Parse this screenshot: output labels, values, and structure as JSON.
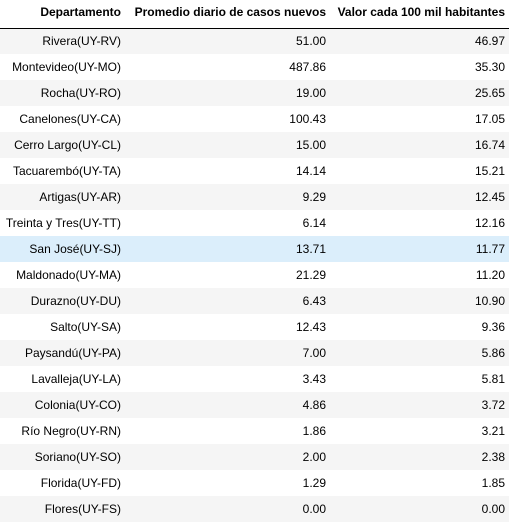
{
  "table": {
    "headers": [
      "Departamento",
      "Promedio diario de casos nuevos",
      "Valor cada 100 mil habitantes"
    ],
    "highlighted_row": 8,
    "rows": [
      [
        "Rivera(UY-RV)",
        "51.00",
        "46.97"
      ],
      [
        "Montevideo(UY-MO)",
        "487.86",
        "35.30"
      ],
      [
        "Rocha(UY-RO)",
        "19.00",
        "25.65"
      ],
      [
        "Canelones(UY-CA)",
        "100.43",
        "17.05"
      ],
      [
        "Cerro Largo(UY-CL)",
        "15.00",
        "16.74"
      ],
      [
        "Tacuarembó(UY-TA)",
        "14.14",
        "15.21"
      ],
      [
        "Artigas(UY-AR)",
        "9.29",
        "12.45"
      ],
      [
        "Treinta y Tres(UY-TT)",
        "6.14",
        "12.16"
      ],
      [
        "San José(UY-SJ)",
        "13.71",
        "11.77"
      ],
      [
        "Maldonado(UY-MA)",
        "21.29",
        "11.20"
      ],
      [
        "Durazno(UY-DU)",
        "6.43",
        "10.90"
      ],
      [
        "Salto(UY-SA)",
        "12.43",
        "9.36"
      ],
      [
        "Paysandú(UY-PA)",
        "7.00",
        "5.86"
      ],
      [
        "Lavalleja(UY-LA)",
        "3.43",
        "5.81"
      ],
      [
        "Colonia(UY-CO)",
        "4.86",
        "3.72"
      ],
      [
        "Río Negro(UY-RN)",
        "1.86",
        "3.21"
      ],
      [
        "Soriano(UY-SO)",
        "2.00",
        "2.38"
      ],
      [
        "Florida(UY-FD)",
        "1.29",
        "1.85"
      ],
      [
        "Flores(UY-FS)",
        "0.00",
        "0.00"
      ]
    ]
  }
}
